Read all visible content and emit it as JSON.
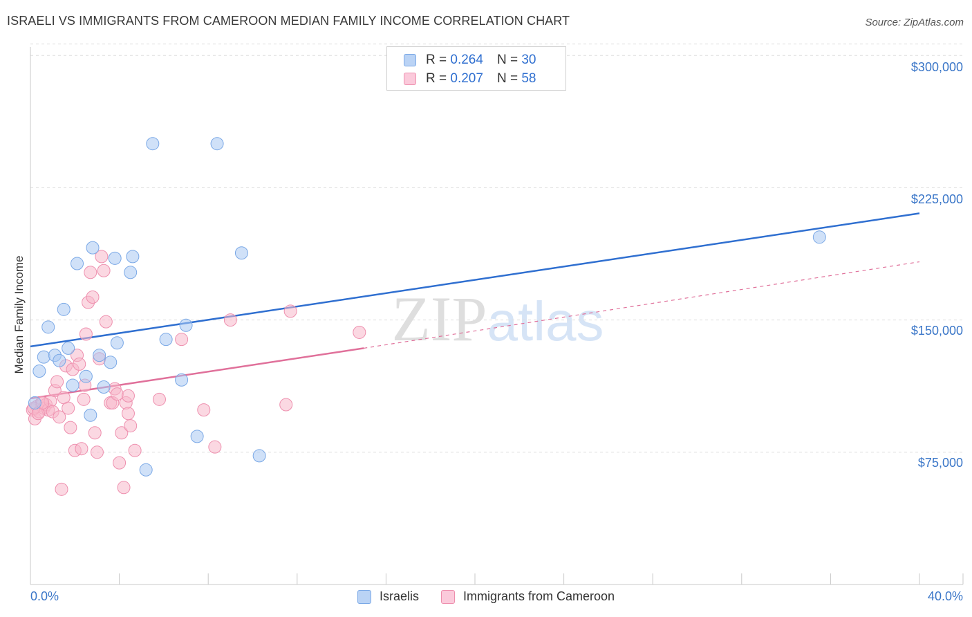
{
  "chart_data": {
    "type": "scatter",
    "title": "ISRAELI VS IMMIGRANTS FROM CAMEROON MEDIAN FAMILY INCOME CORRELATION CHART",
    "source": "Source: ZipAtlas.com",
    "ylabel": "Median Family Income",
    "xlim": [
      0,
      40
    ],
    "ylim": [
      0,
      315000
    ],
    "x_tick_labels": [
      "0.0%",
      "40.0%"
    ],
    "y_ticks": [
      {
        "value": 75000,
        "label": "$75,000"
      },
      {
        "value": 150000,
        "label": "$150,000"
      },
      {
        "value": 225000,
        "label": "$225,000"
      },
      {
        "value": 300000,
        "label": "$300,000"
      }
    ],
    "legend_top": [
      {
        "r_label": "R = ",
        "r_value": "0.264",
        "n_label": "N = ",
        "n_value": "30"
      },
      {
        "r_label": "R = ",
        "r_value": "0.207",
        "n_label": "N = ",
        "n_value": "58"
      }
    ],
    "watermark": "ZIPatlas",
    "series": [
      {
        "name": "Israelis",
        "color": "#a9c8f2",
        "stroke": "#7aa8e6",
        "line_color": "#2f6fd0",
        "trend": {
          "x0": 0,
          "y0": 135000,
          "x1": 40,
          "y1": 210500,
          "dashed_to": null
        },
        "points": [
          [
            0.2,
            103000
          ],
          [
            0.4,
            121000
          ],
          [
            0.6,
            129000
          ],
          [
            0.8,
            146000
          ],
          [
            1.1,
            130000
          ],
          [
            1.3,
            127000
          ],
          [
            1.5,
            156000
          ],
          [
            1.7,
            134000
          ],
          [
            1.9,
            113000
          ],
          [
            2.1,
            182000
          ],
          [
            2.5,
            118000
          ],
          [
            2.7,
            96000
          ],
          [
            2.8,
            191000
          ],
          [
            3.1,
            130000
          ],
          [
            3.3,
            112000
          ],
          [
            3.6,
            126000
          ],
          [
            3.8,
            185000
          ],
          [
            3.9,
            137000
          ],
          [
            4.6,
            186000
          ],
          [
            4.5,
            177000
          ],
          [
            5.5,
            250000
          ],
          [
            5.2,
            65000
          ],
          [
            6.1,
            139000
          ],
          [
            6.8,
            116000
          ],
          [
            7.0,
            147000
          ],
          [
            7.5,
            84000
          ],
          [
            8.4,
            250000
          ],
          [
            9.5,
            188000
          ],
          [
            10.3,
            73000
          ],
          [
            35.5,
            197000
          ]
        ]
      },
      {
        "name": "Immigrants from Cameroon",
        "color": "#f7b8cb",
        "stroke": "#ee8fae",
        "line_color": "#e0709a",
        "trend": {
          "x0": 0,
          "y0": 105500,
          "x1": 15,
          "y1": 134000,
          "dashed_x1": 40,
          "dashed_y1": 183000
        },
        "points": [
          [
            0.1,
            99000
          ],
          [
            0.2,
            94000
          ],
          [
            0.3,
            101000
          ],
          [
            0.4,
            98000
          ],
          [
            0.5,
            103000
          ],
          [
            0.6,
            100000
          ],
          [
            0.7,
            102000
          ],
          [
            0.8,
            99000
          ],
          [
            0.9,
            104000
          ],
          [
            1.0,
            98000
          ],
          [
            1.1,
            110000
          ],
          [
            1.2,
            115000
          ],
          [
            1.3,
            95000
          ],
          [
            1.5,
            106000
          ],
          [
            1.6,
            124000
          ],
          [
            1.7,
            100000
          ],
          [
            1.8,
            89000
          ],
          [
            1.9,
            122000
          ],
          [
            2.0,
            76000
          ],
          [
            2.1,
            130000
          ],
          [
            2.2,
            125000
          ],
          [
            2.3,
            77000
          ],
          [
            2.4,
            105000
          ],
          [
            2.5,
            142000
          ],
          [
            2.6,
            160000
          ],
          [
            2.7,
            177000
          ],
          [
            2.8,
            163000
          ],
          [
            2.9,
            86000
          ],
          [
            3.0,
            75000
          ],
          [
            3.1,
            128000
          ],
          [
            3.2,
            186000
          ],
          [
            3.3,
            178000
          ],
          [
            3.4,
            149000
          ],
          [
            3.6,
            103000
          ],
          [
            3.7,
            103000
          ],
          [
            3.8,
            111000
          ],
          [
            3.9,
            108000
          ],
          [
            4.0,
            69000
          ],
          [
            4.1,
            86000
          ],
          [
            4.2,
            55000
          ],
          [
            4.3,
            103000
          ],
          [
            4.4,
            97000
          ],
          [
            4.5,
            90000
          ],
          [
            1.4,
            54000
          ],
          [
            4.7,
            76000
          ],
          [
            5.8,
            105000
          ],
          [
            6.8,
            139000
          ],
          [
            7.8,
            99000
          ],
          [
            8.3,
            78000
          ],
          [
            9.0,
            150000
          ],
          [
            11.5,
            102000
          ],
          [
            11.7,
            155000
          ],
          [
            14.8,
            143000
          ],
          [
            0.15,
            100000
          ],
          [
            0.35,
            97000
          ],
          [
            0.55,
            103000
          ],
          [
            2.45,
            113000
          ],
          [
            4.4,
            107000
          ]
        ]
      }
    ]
  }
}
